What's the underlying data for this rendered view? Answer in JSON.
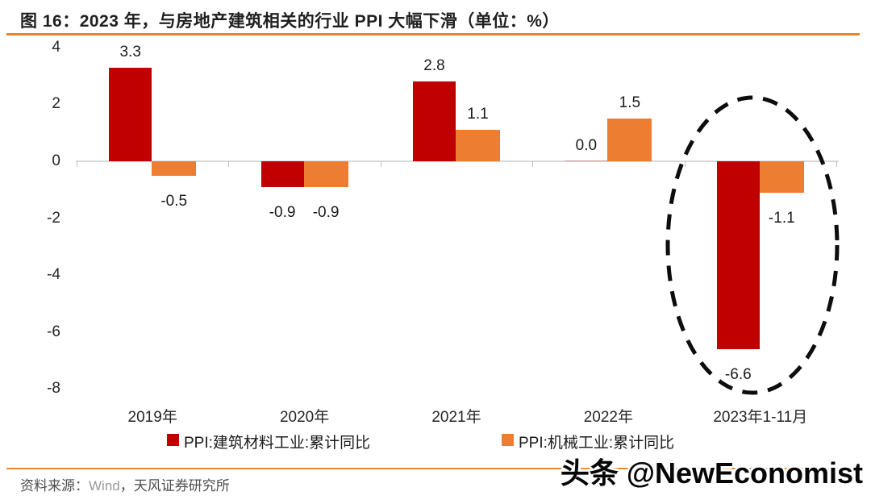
{
  "header": {
    "title": "图 16：2023 年，与房地产建筑相关的行业 PPI 大幅下滑（单位：%）",
    "rule_color": "#e8832e"
  },
  "chart_data": {
    "type": "bar",
    "title": "图 16：2023 年，与房地产建筑相关的行业 PPI 大幅下滑（单位：%）",
    "unit": "%",
    "categories": [
      "2019年",
      "2020年",
      "2021年",
      "2022年",
      "2023年1-11月"
    ],
    "series": [
      {
        "name": "PPI:建筑材料工业:累计同比",
        "color": "#c00000",
        "values": [
          3.3,
          -0.9,
          2.8,
          0.0,
          -6.6
        ]
      },
      {
        "name": "PPI:机械工业:累计同比",
        "color": "#ed7d31",
        "values": [
          -0.5,
          -0.9,
          1.1,
          1.5,
          -1.1
        ]
      }
    ],
    "ylim": [
      -8,
      4
    ],
    "yticks": [
      4,
      2,
      0,
      -2,
      -4,
      -6,
      -8
    ],
    "grid": false,
    "legend_position": "bottom",
    "data_labels": true,
    "annotation": {
      "type": "dashed-ellipse",
      "target_category": "2023年1-11月",
      "color": "#0d0d0d"
    }
  },
  "footer": {
    "source_prefix": "资料来源：",
    "source_wind": "Wind",
    "source_suffix": "，天风证券研究所",
    "rule_color": "#e8872f",
    "watermark": "头条 @NewEconomist"
  }
}
